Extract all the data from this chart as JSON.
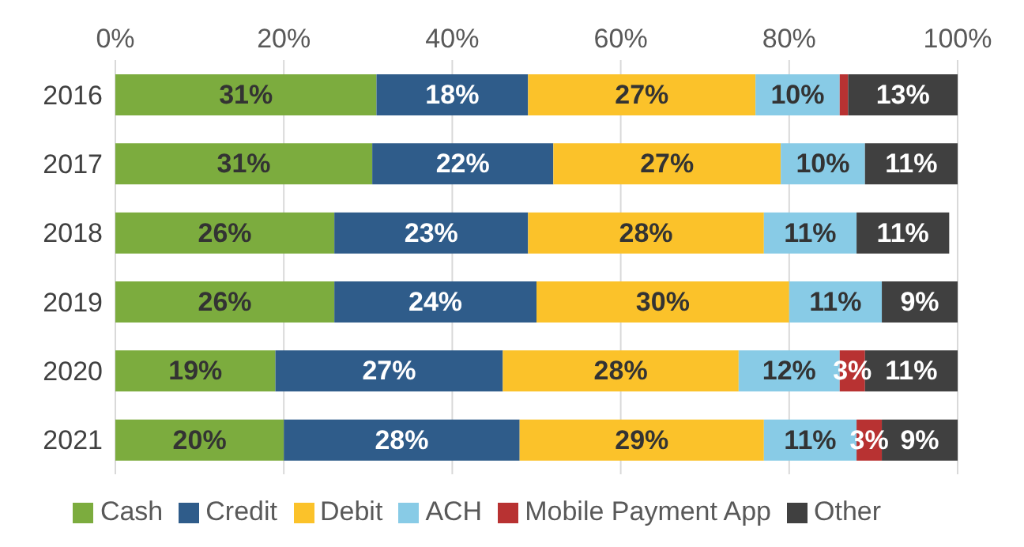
{
  "chart_data": {
    "type": "bar",
    "orientation": "horizontal",
    "stacked": true,
    "categories": [
      "2016",
      "2017",
      "2018",
      "2019",
      "2020",
      "2021"
    ],
    "series": [
      {
        "name": "Cash",
        "color": "#7cac3e",
        "values": [
          31,
          30.5,
          26,
          26,
          19,
          20
        ],
        "value_labels": [
          "31%",
          "31%",
          "26%",
          "26%",
          "19%",
          "20%"
        ]
      },
      {
        "name": "Credit",
        "color": "#2f5c8a",
        "values": [
          18,
          21.5,
          23,
          24,
          27,
          28
        ],
        "value_labels": [
          "18%",
          "22%",
          "23%",
          "24%",
          "27%",
          "28%"
        ]
      },
      {
        "name": "Debit",
        "color": "#fbc22a",
        "values": [
          27,
          27,
          28,
          30,
          28,
          29
        ],
        "value_labels": [
          "27%",
          "27%",
          "28%",
          "30%",
          "28%",
          "29%"
        ]
      },
      {
        "name": "ACH",
        "color": "#88cbe6",
        "values": [
          10,
          10,
          11,
          11,
          12,
          11
        ],
        "value_labels": [
          "10%",
          "10%",
          "11%",
          "11%",
          "12%",
          "11%"
        ]
      },
      {
        "name": "Mobile Payment App",
        "color": "#b83232",
        "values": [
          1,
          0,
          0,
          0,
          3,
          3
        ],
        "value_labels": [
          null,
          null,
          null,
          null,
          "3%",
          "3%"
        ]
      },
      {
        "name": "Other",
        "color": "#404040",
        "values": [
          13,
          11,
          11,
          9,
          11,
          9
        ],
        "value_labels": [
          "13%",
          "11%",
          "11%",
          "9%",
          "11%",
          "9%"
        ]
      }
    ],
    "xlim": [
      0,
      100
    ],
    "xticks": [
      {
        "value": 0,
        "label": "0%"
      },
      {
        "value": 20,
        "label": "20%"
      },
      {
        "value": 40,
        "label": "40%"
      },
      {
        "value": 60,
        "label": "60%"
      },
      {
        "value": 80,
        "label": "80%"
      },
      {
        "value": 100,
        "label": "100%"
      }
    ],
    "grid": "x",
    "legend": "bottom"
  }
}
